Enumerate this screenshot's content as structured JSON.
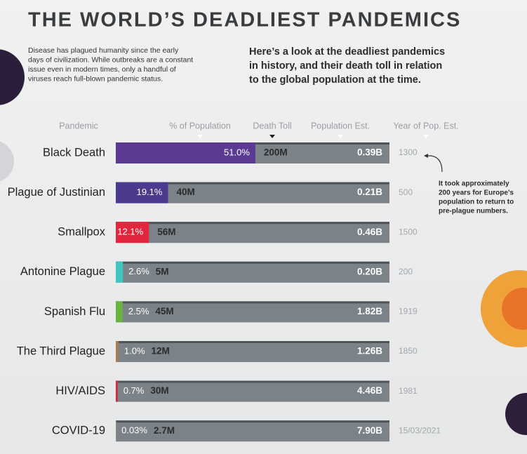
{
  "chart_data": {
    "type": "bar",
    "title": "THE WORLD’S DEADLIEST PANDEMICS",
    "subtitle_lines": [
      "Disease has plagued humanity since the early",
      "days of civilization. While outbreaks are a constant",
      "issue even in modern times, only a handful of",
      "viruses reach full-blown pandemic status."
    ],
    "description_lines": [
      "Here’s a look at the deadliest pandemics",
      "in history, and their death toll in relation",
      "to the global population at the time."
    ],
    "annotation_lines": [
      "It took approximately",
      "200 years for Europe’s",
      "population to return to",
      "pre-plague numbers."
    ],
    "column_headers": [
      "Pandemic",
      "% of Population",
      "Death Toll",
      "Population Est.",
      "Year of Pop. Est."
    ],
    "categories": [
      "Black Death",
      "Plague of Justinian",
      "Smallpox",
      "Antonine Plague",
      "Spanish Flu",
      "The Third Plague",
      "HIV/AIDS",
      "COVID-19"
    ],
    "xlim": [
      0,
      100
    ],
    "series": [
      {
        "name": "% of Population",
        "values": [
          51.0,
          19.1,
          12.1,
          2.6,
          2.5,
          1.0,
          0.7,
          0.03
        ],
        "value_labels": [
          "51.0%",
          "19.1%",
          "12.1%",
          "2.6%",
          "2.5%",
          "1.0%",
          "0.7%",
          "0.03%"
        ],
        "colors": [
          "#5a3a92",
          "#4c3a8e",
          "#e2263d",
          "#3fc6c0",
          "#6bb33f",
          "#a67c52",
          "#d8263c",
          "#9aa0a6"
        ]
      },
      {
        "name": "Death Toll",
        "values": [
          200000000,
          40000000,
          56000000,
          5000000,
          45000000,
          12000000,
          30000000,
          2700000
        ],
        "value_labels": [
          "200M",
          "40M",
          "56M",
          "5M",
          "45M",
          "12M",
          "30M",
          "2.7M"
        ]
      },
      {
        "name": "Population Est.",
        "values": [
          390000000,
          210000000,
          460000000,
          200000000,
          1820000000,
          1260000000,
          4460000000,
          7900000000
        ],
        "value_labels": [
          "0.39B",
          "0.21B",
          "0.46B",
          "0.20B",
          "1.82B",
          "1.26B",
          "4.46B",
          "7.90B"
        ]
      },
      {
        "name": "Year of Pop. Est.",
        "labels": [
          "1300",
          "500",
          "1500",
          "200",
          "1919",
          "1850",
          "1981",
          "15/03/2021"
        ]
      }
    ],
    "bar_color": "#7b8288"
  }
}
